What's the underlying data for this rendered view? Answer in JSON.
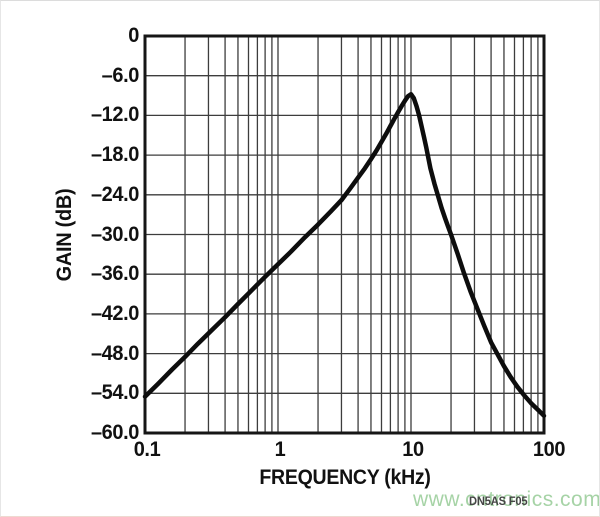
{
  "watermark": {
    "text": "www.cntronics.com",
    "color": "#a6d3a6"
  },
  "colors": {
    "grid": "#3d3d3d",
    "frame": "#161616",
    "curve": "#0d0d0d",
    "text": "#111111"
  },
  "chart_data": {
    "type": "line",
    "title": "",
    "xlabel": "FREQUENCY (kHz)",
    "ylabel": "GAIN (dB)",
    "x_scale": "log",
    "xlim": [
      0.1,
      100
    ],
    "ylim": [
      -60,
      0
    ],
    "x_ticks": [
      0.1,
      1,
      10,
      100
    ],
    "x_tick_labels": [
      "0.1",
      "1",
      "10",
      "100"
    ],
    "y_ticks": [
      0,
      -6,
      -12,
      -18,
      -24,
      -30,
      -36,
      -42,
      -48,
      -54,
      -60
    ],
    "y_tick_labels": [
      "0",
      "–6.0",
      "–12.0",
      "–18.0",
      "–24.0",
      "–30.0",
      "–36.0",
      "–42.0",
      "–48.0",
      "–54.0",
      "–60.0"
    ],
    "grid": {
      "vertical": "log-decades-with-minor",
      "horizontal": "every-6dB",
      "legend": "none"
    },
    "fig_ref": "DN5AS F05",
    "series": [
      {
        "name": "gain-response",
        "peak": {
          "frequency_khz": 10,
          "gain_db": -8.8
        },
        "points": [
          [
            0.1,
            -54.5
          ],
          [
            0.125,
            -52.6
          ],
          [
            0.16,
            -50.4
          ],
          [
            0.2,
            -48.5
          ],
          [
            0.25,
            -46.5
          ],
          [
            0.32,
            -44.4
          ],
          [
            0.4,
            -42.5
          ],
          [
            0.5,
            -40.5
          ],
          [
            0.63,
            -38.5
          ],
          [
            0.8,
            -36.4
          ],
          [
            1,
            -34.5
          ],
          [
            1.25,
            -32.6
          ],
          [
            1.6,
            -30.4
          ],
          [
            2,
            -28.5
          ],
          [
            2.5,
            -26.5
          ],
          [
            3,
            -24.8
          ],
          [
            3.5,
            -23.0
          ],
          [
            4,
            -21.4
          ],
          [
            4.5,
            -20.0
          ],
          [
            5,
            -18.6
          ],
          [
            5.5,
            -17.3
          ],
          [
            6,
            -16.0
          ],
          [
            6.5,
            -14.8
          ],
          [
            7,
            -13.6
          ],
          [
            7.5,
            -12.5
          ],
          [
            8,
            -11.5
          ],
          [
            8.5,
            -10.6
          ],
          [
            9,
            -9.8
          ],
          [
            9.5,
            -9.1
          ],
          [
            10,
            -8.8
          ],
          [
            10.5,
            -9.4
          ],
          [
            11,
            -10.6
          ],
          [
            11.5,
            -12.0
          ],
          [
            12,
            -13.6
          ],
          [
            12.5,
            -15.2
          ],
          [
            13,
            -16.8
          ],
          [
            14,
            -20.0
          ],
          [
            15,
            -22.3
          ],
          [
            16,
            -24.2
          ],
          [
            17,
            -26.0
          ],
          [
            18,
            -27.5
          ],
          [
            19,
            -28.8
          ],
          [
            20,
            -30.0
          ],
          [
            22.4,
            -32.9
          ],
          [
            25,
            -35.8
          ],
          [
            28,
            -38.6
          ],
          [
            31.5,
            -41.2
          ],
          [
            35.5,
            -43.8
          ],
          [
            40,
            -46.3
          ],
          [
            45,
            -48.2
          ],
          [
            50,
            -49.9
          ],
          [
            56,
            -51.5
          ],
          [
            63,
            -53.0
          ],
          [
            71,
            -54.3
          ],
          [
            80,
            -55.5
          ],
          [
            90,
            -56.5
          ],
          [
            100,
            -57.4
          ]
        ]
      }
    ]
  }
}
